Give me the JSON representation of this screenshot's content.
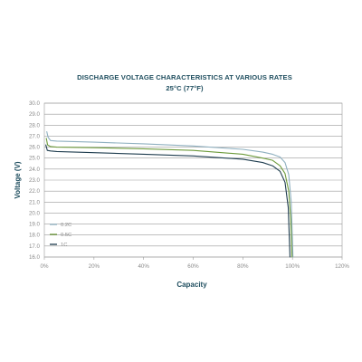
{
  "chart_data": {
    "type": "line",
    "title": "DISCHARGE VOLTAGE CHARACTERISTICS AT VARIOUS RATES",
    "subtitle": "25°C (77°F)",
    "xlabel": "Capacity",
    "ylabel": "Voltage (V)",
    "xlim": [
      0,
      120
    ],
    "ylim": [
      16,
      30
    ],
    "x_ticks": [
      {
        "value": 0,
        "label": "0%"
      },
      {
        "value": 20,
        "label": "20%"
      },
      {
        "value": 40,
        "label": "40%"
      },
      {
        "value": 60,
        "label": "60%"
      },
      {
        "value": 80,
        "label": "80%"
      },
      {
        "value": 100,
        "label": "100%"
      },
      {
        "value": 120,
        "label": "120%"
      }
    ],
    "y_ticks": [
      {
        "value": 16,
        "label": "16.0"
      },
      {
        "value": 17,
        "label": "17.0"
      },
      {
        "value": 18,
        "label": "18.0"
      },
      {
        "value": 19,
        "label": "19.0"
      },
      {
        "value": 20,
        "label": "20.0"
      },
      {
        "value": 21,
        "label": "21.0"
      },
      {
        "value": 22,
        "label": "22.0"
      },
      {
        "value": 23,
        "label": "23.0"
      },
      {
        "value": 24,
        "label": "24.0"
      },
      {
        "value": 25,
        "label": "25.0"
      },
      {
        "value": 26,
        "label": "26.0"
      },
      {
        "value": 27,
        "label": "27.0"
      },
      {
        "value": 28,
        "label": "28.0"
      },
      {
        "value": 29,
        "label": "29.0"
      },
      {
        "value": 30,
        "label": "30.0"
      }
    ],
    "grid": "horizontal",
    "legend_position": "bottom-left",
    "series": [
      {
        "name": "0.2C",
        "color": "#8fb0c0",
        "points": [
          [
            1.0,
            27.4
          ],
          [
            1.5,
            26.9
          ],
          [
            2.5,
            26.6
          ],
          [
            5,
            26.55
          ],
          [
            20,
            26.45
          ],
          [
            40,
            26.3
          ],
          [
            60,
            26.1
          ],
          [
            80,
            25.8
          ],
          [
            88,
            25.55
          ],
          [
            92,
            25.35
          ],
          [
            95,
            25.1
          ],
          [
            97,
            24.6
          ],
          [
            98.5,
            23.5
          ],
          [
            99.5,
            21.0
          ],
          [
            100,
            17.5
          ],
          [
            100.2,
            16.0
          ]
        ]
      },
      {
        "name": "0.5C",
        "color": "#6e9b3c",
        "points": [
          [
            0.8,
            26.8
          ],
          [
            1.3,
            26.2
          ],
          [
            2.5,
            26.05
          ],
          [
            5,
            26.0
          ],
          [
            20,
            25.95
          ],
          [
            40,
            25.85
          ],
          [
            60,
            25.7
          ],
          [
            80,
            25.35
          ],
          [
            88,
            25.0
          ],
          [
            92,
            24.8
          ],
          [
            95,
            24.3
          ],
          [
            97,
            23.6
          ],
          [
            98.5,
            22.0
          ],
          [
            99.3,
            19.5
          ],
          [
            99.8,
            16.0
          ]
        ]
      },
      {
        "name": "1C",
        "color": "#1f3d4f",
        "points": [
          [
            0.6,
            26.2
          ],
          [
            1.2,
            25.7
          ],
          [
            2.5,
            25.65
          ],
          [
            5,
            25.6
          ],
          [
            20,
            25.5
          ],
          [
            40,
            25.35
          ],
          [
            60,
            25.2
          ],
          [
            80,
            24.9
          ],
          [
            88,
            24.6
          ],
          [
            92,
            24.3
          ],
          [
            95,
            23.8
          ],
          [
            97,
            22.8
          ],
          [
            98.3,
            20.5
          ],
          [
            99.0,
            16.0
          ]
        ]
      }
    ]
  }
}
